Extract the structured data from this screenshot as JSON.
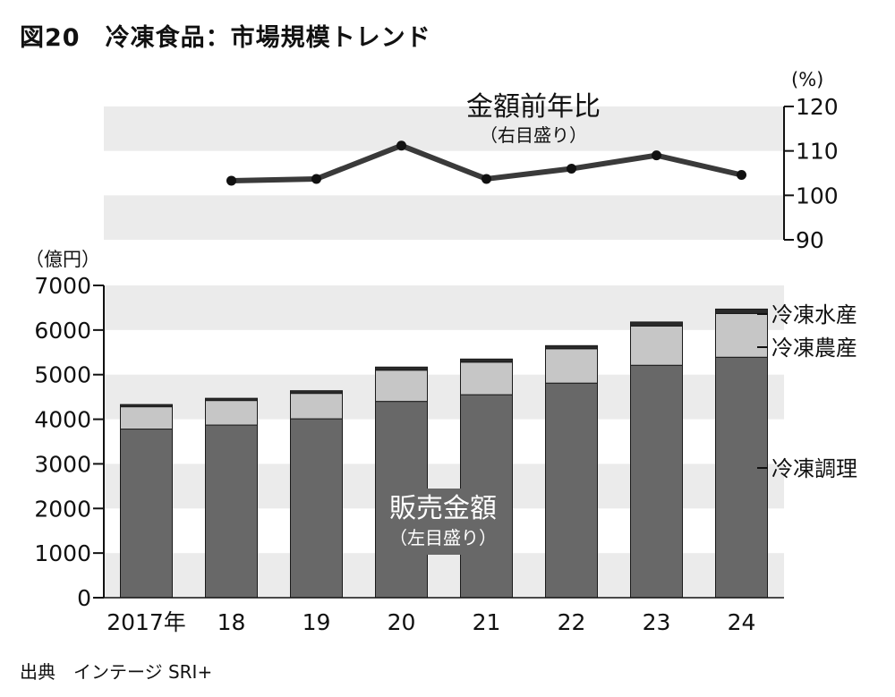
{
  "title": "図20　冷凍食品：市場規模トレンド",
  "source": "出典　インテージ SRI+",
  "chart_data": [
    {
      "type": "line",
      "title": "金額前年比",
      "subtitle": "（右目盛り）",
      "unit": "(%)",
      "axis": "right",
      "ylim": [
        90,
        120
      ],
      "yticks": [
        90,
        100,
        110,
        120
      ],
      "x": [
        "18",
        "19",
        "20",
        "21",
        "22",
        "23",
        "24"
      ],
      "values": [
        103.3,
        103.7,
        111.2,
        103.7,
        106.0,
        109.0,
        104.6
      ],
      "line_color": "#3a3a3a",
      "grid": "alternating bands"
    },
    {
      "type": "bar",
      "stacked": true,
      "title": "販売金額",
      "subtitle": "（左目盛り）",
      "unit": "（億円）",
      "axis": "left",
      "ylim": [
        0,
        7000
      ],
      "yticks": [
        0,
        1000,
        2000,
        3000,
        4000,
        5000,
        6000,
        7000
      ],
      "categories": [
        "2017年",
        "18",
        "19",
        "20",
        "21",
        "22",
        "23",
        "24"
      ],
      "series": [
        {
          "name": "冷凍調理",
          "color": "#686868",
          "values": [
            3780,
            3870,
            4010,
            4400,
            4550,
            4810,
            5210,
            5390
          ]
        },
        {
          "name": "冷凍農産",
          "color": "#c6c6c6",
          "values": [
            500,
            550,
            570,
            700,
            730,
            770,
            880,
            980
          ]
        },
        {
          "name": "冷凍水産",
          "color": "#2a2a2a",
          "values": [
            50,
            50,
            60,
            70,
            70,
            70,
            90,
            100
          ]
        }
      ],
      "grid": "alternating bands"
    }
  ]
}
